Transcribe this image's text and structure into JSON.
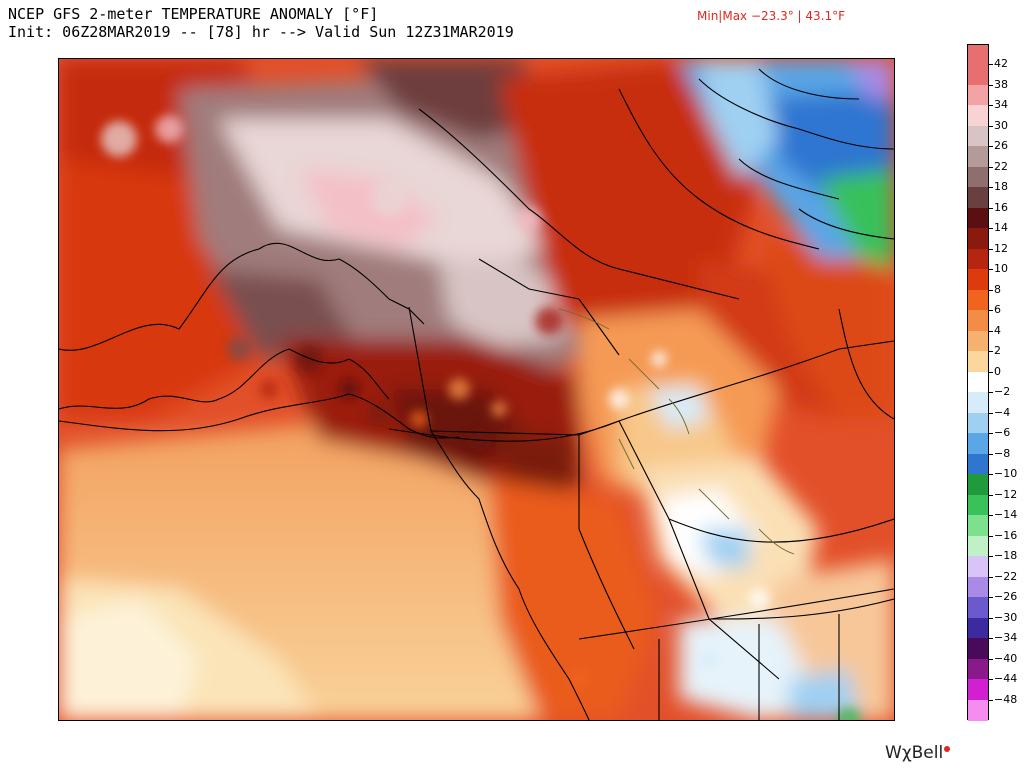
{
  "header": {
    "title_line1": "NCEP GFS 2-meter TEMPERATURE ANOMALY [°F]",
    "title_line2": "Init: 06Z28MAR2019 -- [78] hr --> Valid Sun 12Z31MAR2019",
    "minmax": "Min|Max −23.3° | 43.1°F"
  },
  "colorbar": {
    "labels": [
      "42",
      "38",
      "34",
      "30",
      "26",
      "22",
      "18",
      "16",
      "14",
      "12",
      "10",
      "8",
      "6",
      "4",
      "2",
      "0",
      "−2",
      "−4",
      "−6",
      "−8",
      "−10",
      "−12",
      "−14",
      "−16",
      "−18",
      "−22",
      "−26",
      "−30",
      "−34",
      "−40",
      "−44",
      "−48"
    ],
    "colors": [
      "#e86f6f",
      "#f3a3a3",
      "#f8d3d3",
      "#d7c4c4",
      "#b59a9a",
      "#8e6e6e",
      "#6a3f3f",
      "#5a1010",
      "#8a1a0e",
      "#b6250f",
      "#dd3a0e",
      "#f0641f",
      "#f38d45",
      "#f7b16e",
      "#fbd79d",
      "#ffffff",
      "#d6ecfb",
      "#9fd0f2",
      "#5aa6e6",
      "#2f76d1",
      "#1f9a3c",
      "#39c15a",
      "#7de08d",
      "#bff0c6",
      "#d9c4f7",
      "#a98ae6",
      "#6a5acd",
      "#3c2aa0",
      "#4a0a5a",
      "#8a1a8a",
      "#d21fd2",
      "#f58cf0"
    ]
  },
  "map": {
    "region": "alaska-western-canada",
    "max_anomaly_color": "#e86f6f",
    "warm_color": "#dd3a0e",
    "cool_color": "#2f76d1"
  },
  "branding": {
    "logo_text": "WxBell",
    "logo_chi": "χ"
  }
}
